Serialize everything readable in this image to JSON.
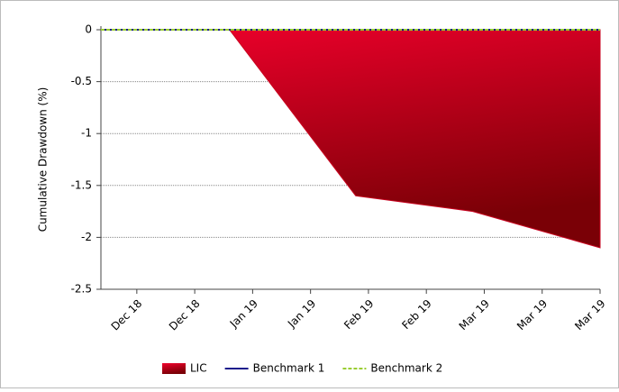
{
  "chart_data": {
    "type": "area",
    "y_label": "Cumulative Drawdown (%)",
    "ylim": [
      -2.5,
      0
    ],
    "yticks": [
      0,
      -0.5,
      -1,
      -1.5,
      -2,
      -2.5
    ],
    "grid": true,
    "xlim": [
      -0.62,
      8
    ],
    "xticks": [
      {
        "value": 0,
        "label": "Dec 18"
      },
      {
        "value": 1,
        "label": "Dec 18"
      },
      {
        "value": 2,
        "label": "Jan 19"
      },
      {
        "value": 3,
        "label": "Jan 19"
      },
      {
        "value": 4,
        "label": "Feb 19"
      },
      {
        "value": 5,
        "label": "Feb 19"
      },
      {
        "value": 6,
        "label": "Mar 19"
      },
      {
        "value": 7,
        "label": "Mar 19"
      },
      {
        "value": 8,
        "label": "Mar 19"
      }
    ],
    "legend": "bottom",
    "series": [
      {
        "name": "LIC",
        "color": "#c8001e",
        "style": "area",
        "x": [
          -0.62,
          1.6,
          3.78,
          5.8,
          8
        ],
        "values": [
          0,
          0,
          -1.6,
          -1.75,
          -2.1
        ]
      },
      {
        "name": "Benchmark 1",
        "color": "#1a1a8c",
        "style": "solid",
        "x": [
          -0.62,
          8
        ],
        "values": [
          0,
          0
        ]
      },
      {
        "name": "Benchmark 2",
        "color": "#9acd32",
        "style": "dashed",
        "x": [
          -0.62,
          8
        ],
        "values": [
          0,
          0
        ]
      }
    ]
  }
}
